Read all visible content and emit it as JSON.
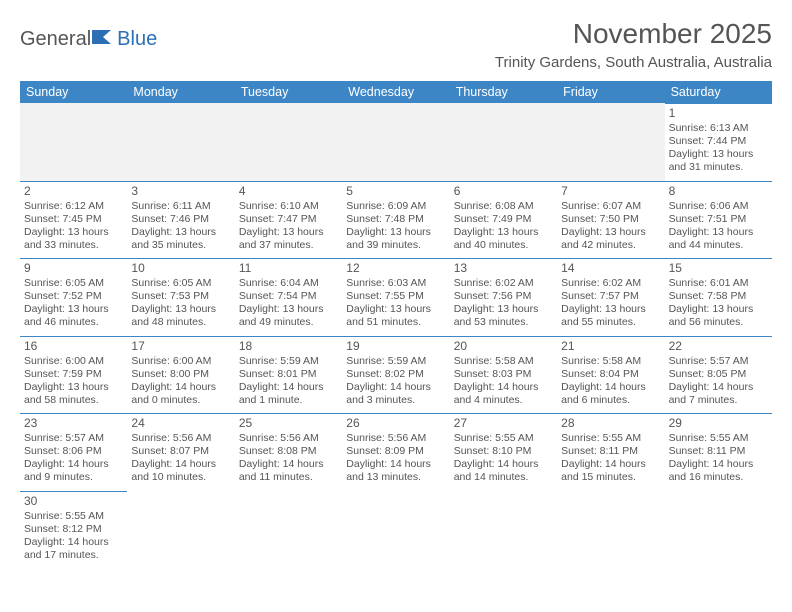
{
  "logo": {
    "part1": "General",
    "part2": "Blue"
  },
  "title": "November 2025",
  "location": "Trinity Gardens, South Australia, Australia",
  "colors": {
    "header_bg": "#3d86c6",
    "header_text": "#ffffff",
    "text": "#555555",
    "blank_bg": "#f2f2f2",
    "border": "#3d86c6"
  },
  "weekdays": [
    "Sunday",
    "Monday",
    "Tuesday",
    "Wednesday",
    "Thursday",
    "Friday",
    "Saturday"
  ],
  "days": [
    {
      "n": "1",
      "sr": "Sunrise: 6:13 AM",
      "ss": "Sunset: 7:44 PM",
      "d1": "Daylight: 13 hours",
      "d2": "and 31 minutes."
    },
    {
      "n": "2",
      "sr": "Sunrise: 6:12 AM",
      "ss": "Sunset: 7:45 PM",
      "d1": "Daylight: 13 hours",
      "d2": "and 33 minutes."
    },
    {
      "n": "3",
      "sr": "Sunrise: 6:11 AM",
      "ss": "Sunset: 7:46 PM",
      "d1": "Daylight: 13 hours",
      "d2": "and 35 minutes."
    },
    {
      "n": "4",
      "sr": "Sunrise: 6:10 AM",
      "ss": "Sunset: 7:47 PM",
      "d1": "Daylight: 13 hours",
      "d2": "and 37 minutes."
    },
    {
      "n": "5",
      "sr": "Sunrise: 6:09 AM",
      "ss": "Sunset: 7:48 PM",
      "d1": "Daylight: 13 hours",
      "d2": "and 39 minutes."
    },
    {
      "n": "6",
      "sr": "Sunrise: 6:08 AM",
      "ss": "Sunset: 7:49 PM",
      "d1": "Daylight: 13 hours",
      "d2": "and 40 minutes."
    },
    {
      "n": "7",
      "sr": "Sunrise: 6:07 AM",
      "ss": "Sunset: 7:50 PM",
      "d1": "Daylight: 13 hours",
      "d2": "and 42 minutes."
    },
    {
      "n": "8",
      "sr": "Sunrise: 6:06 AM",
      "ss": "Sunset: 7:51 PM",
      "d1": "Daylight: 13 hours",
      "d2": "and 44 minutes."
    },
    {
      "n": "9",
      "sr": "Sunrise: 6:05 AM",
      "ss": "Sunset: 7:52 PM",
      "d1": "Daylight: 13 hours",
      "d2": "and 46 minutes."
    },
    {
      "n": "10",
      "sr": "Sunrise: 6:05 AM",
      "ss": "Sunset: 7:53 PM",
      "d1": "Daylight: 13 hours",
      "d2": "and 48 minutes."
    },
    {
      "n": "11",
      "sr": "Sunrise: 6:04 AM",
      "ss": "Sunset: 7:54 PM",
      "d1": "Daylight: 13 hours",
      "d2": "and 49 minutes."
    },
    {
      "n": "12",
      "sr": "Sunrise: 6:03 AM",
      "ss": "Sunset: 7:55 PM",
      "d1": "Daylight: 13 hours",
      "d2": "and 51 minutes."
    },
    {
      "n": "13",
      "sr": "Sunrise: 6:02 AM",
      "ss": "Sunset: 7:56 PM",
      "d1": "Daylight: 13 hours",
      "d2": "and 53 minutes."
    },
    {
      "n": "14",
      "sr": "Sunrise: 6:02 AM",
      "ss": "Sunset: 7:57 PM",
      "d1": "Daylight: 13 hours",
      "d2": "and 55 minutes."
    },
    {
      "n": "15",
      "sr": "Sunrise: 6:01 AM",
      "ss": "Sunset: 7:58 PM",
      "d1": "Daylight: 13 hours",
      "d2": "and 56 minutes."
    },
    {
      "n": "16",
      "sr": "Sunrise: 6:00 AM",
      "ss": "Sunset: 7:59 PM",
      "d1": "Daylight: 13 hours",
      "d2": "and 58 minutes."
    },
    {
      "n": "17",
      "sr": "Sunrise: 6:00 AM",
      "ss": "Sunset: 8:00 PM",
      "d1": "Daylight: 14 hours",
      "d2": "and 0 minutes."
    },
    {
      "n": "18",
      "sr": "Sunrise: 5:59 AM",
      "ss": "Sunset: 8:01 PM",
      "d1": "Daylight: 14 hours",
      "d2": "and 1 minute."
    },
    {
      "n": "19",
      "sr": "Sunrise: 5:59 AM",
      "ss": "Sunset: 8:02 PM",
      "d1": "Daylight: 14 hours",
      "d2": "and 3 minutes."
    },
    {
      "n": "20",
      "sr": "Sunrise: 5:58 AM",
      "ss": "Sunset: 8:03 PM",
      "d1": "Daylight: 14 hours",
      "d2": "and 4 minutes."
    },
    {
      "n": "21",
      "sr": "Sunrise: 5:58 AM",
      "ss": "Sunset: 8:04 PM",
      "d1": "Daylight: 14 hours",
      "d2": "and 6 minutes."
    },
    {
      "n": "22",
      "sr": "Sunrise: 5:57 AM",
      "ss": "Sunset: 8:05 PM",
      "d1": "Daylight: 14 hours",
      "d2": "and 7 minutes."
    },
    {
      "n": "23",
      "sr": "Sunrise: 5:57 AM",
      "ss": "Sunset: 8:06 PM",
      "d1": "Daylight: 14 hours",
      "d2": "and 9 minutes."
    },
    {
      "n": "24",
      "sr": "Sunrise: 5:56 AM",
      "ss": "Sunset: 8:07 PM",
      "d1": "Daylight: 14 hours",
      "d2": "and 10 minutes."
    },
    {
      "n": "25",
      "sr": "Sunrise: 5:56 AM",
      "ss": "Sunset: 8:08 PM",
      "d1": "Daylight: 14 hours",
      "d2": "and 11 minutes."
    },
    {
      "n": "26",
      "sr": "Sunrise: 5:56 AM",
      "ss": "Sunset: 8:09 PM",
      "d1": "Daylight: 14 hours",
      "d2": "and 13 minutes."
    },
    {
      "n": "27",
      "sr": "Sunrise: 5:55 AM",
      "ss": "Sunset: 8:10 PM",
      "d1": "Daylight: 14 hours",
      "d2": "and 14 minutes."
    },
    {
      "n": "28",
      "sr": "Sunrise: 5:55 AM",
      "ss": "Sunset: 8:11 PM",
      "d1": "Daylight: 14 hours",
      "d2": "and 15 minutes."
    },
    {
      "n": "29",
      "sr": "Sunrise: 5:55 AM",
      "ss": "Sunset: 8:11 PM",
      "d1": "Daylight: 14 hours",
      "d2": "and 16 minutes."
    },
    {
      "n": "30",
      "sr": "Sunrise: 5:55 AM",
      "ss": "Sunset: 8:12 PM",
      "d1": "Daylight: 14 hours",
      "d2": "and 17 minutes."
    }
  ]
}
